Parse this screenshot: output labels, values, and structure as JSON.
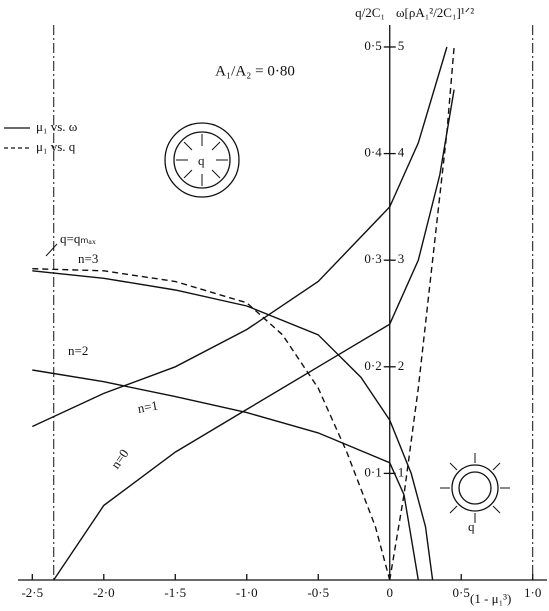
{
  "chart_data": {
    "type": "line",
    "title": "A₁/A₂ = 0·80",
    "y_label": "q/2C₁",
    "y2_label": "ω[ρA₁²/2C₁]¹ᐟ²",
    "x_label": "(1 - μ₁³)",
    "xlim": [
      -2.6,
      1.1
    ],
    "ylim": [
      0,
      0.53
    ],
    "y2lim": [
      0,
      5.3
    ],
    "xticks": [
      {
        "value": -2.5,
        "label": "-2·5"
      },
      {
        "value": -2.0,
        "label": "-2·0"
      },
      {
        "value": -1.5,
        "label": "-1·5"
      },
      {
        "value": -1.0,
        "label": "-1·0"
      },
      {
        "value": -0.5,
        "label": "-0·5"
      },
      0,
      {
        "value": 0.5,
        "label": "0·5"
      },
      {
        "value": 1.0,
        "label": "1·0"
      }
    ],
    "yticks": [
      {
        "value": 0.1,
        "label": "0·1"
      },
      {
        "value": 0.2,
        "label": "0·2"
      },
      {
        "value": 0.3,
        "label": "0·3"
      },
      {
        "value": 0.4,
        "label": "0·4"
      },
      {
        "value": 0.5,
        "label": "0·5"
      }
    ],
    "y2ticks": [
      1,
      2,
      3,
      4,
      5
    ],
    "legend": [
      {
        "label": "μ₁ vs. ω",
        "dash": false
      },
      {
        "label": "μ₁ vs. q",
        "dash": true
      }
    ],
    "series": [
      {
        "name": "n=3",
        "dash": false,
        "x": [
          -2.5,
          -2.0,
          -1.5,
          -1.0,
          -0.5,
          -0.2,
          0,
          0.15,
          0.25,
          0.3
        ],
        "values": [
          0.29,
          0.283,
          0.272,
          0.257,
          0.23,
          0.19,
          0.15,
          0.1,
          0.05,
          0
        ]
      },
      {
        "name": "n=2",
        "dash": false,
        "x": [
          -2.5,
          -2.0,
          -1.5,
          -1.0,
          -0.5,
          0,
          0.1,
          0.2
        ],
        "values": [
          0.197,
          0.186,
          0.172,
          0.157,
          0.138,
          0.11,
          0.08,
          0
        ]
      },
      {
        "name": "n=1",
        "dash": false,
        "x": [
          -2.5,
          -2.0,
          -1.5,
          -1.0,
          -0.5,
          0,
          0.2,
          0.4
        ],
        "values": [
          0.144,
          0.175,
          0.2,
          0.235,
          0.28,
          0.35,
          0.41,
          0.5
        ]
      },
      {
        "name": "n=0",
        "dash": false,
        "x": [
          -2.35,
          -2.0,
          -1.5,
          -1.0,
          -0.5,
          0,
          0.2,
          0.35,
          0.45
        ],
        "values": [
          0,
          0.07,
          0.12,
          0.16,
          0.2,
          0.24,
          0.3,
          0.38,
          0.46
        ]
      },
      {
        "dash": true,
        "x": [
          -2.5,
          -2.0,
          -1.5,
          -1.0,
          -0.75,
          -0.5,
          -0.3,
          -0.1,
          0
        ],
        "values": [
          0.292,
          0.29,
          0.28,
          0.26,
          0.23,
          0.18,
          0.12,
          0.05,
          0
        ]
      },
      {
        "dash": true,
        "x": [
          0,
          0.1,
          0.2,
          0.3,
          0.4,
          0.45
        ],
        "values": [
          0,
          0.08,
          0.18,
          0.3,
          0.42,
          0.5
        ]
      }
    ],
    "vlines": [
      -2.35,
      1.0
    ],
    "annotations": [
      "q=qₘₐₓ",
      "q",
      "q"
    ]
  }
}
